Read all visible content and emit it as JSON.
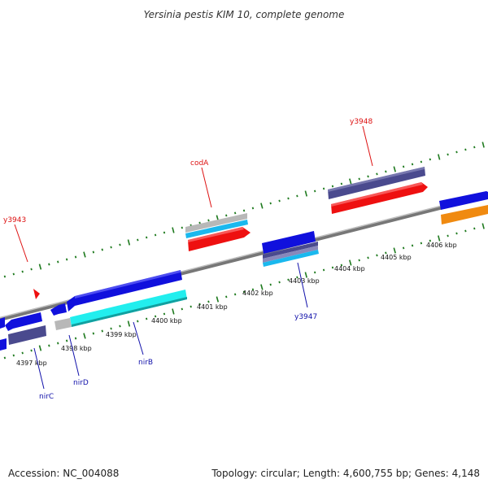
{
  "title": "Yersinia pestis KIM 10, complete genome",
  "footer": {
    "accession": "Accession: NC_004088",
    "summary": "Topology: circular; Length: 4,600,755 bp; Genes: 4,148"
  },
  "colors": {
    "backbone": "#8a8a8a",
    "tick_mark": "#1e7a1e",
    "feature_blue": "#1010dd",
    "feature_navy": "#4a4a8e",
    "feature_red": "#ee1010",
    "feature_cyan": "#22eeee",
    "feature_sky": "#1ab8ee",
    "feature_orange": "#f08a10",
    "feature_gray": "#b8b8b8",
    "label_red": "#dd1111",
    "label_blue": "#1111aa"
  },
  "scale": {
    "kbp_labels": [
      "4397 kbp",
      "4398 kbp",
      "4399 kbp",
      "4400 kbp",
      "4401 kbp",
      "4402 kbp",
      "4403 kbp",
      "4404 kbp",
      "4405 kbp",
      "4406 kbp"
    ]
  },
  "genes": {
    "y3943": "y3943",
    "codA": "codA",
    "y3948": "y3948",
    "nirC": "nirC",
    "nirD": "nirD",
    "nirB": "nirB",
    "y3947": "y3947"
  }
}
